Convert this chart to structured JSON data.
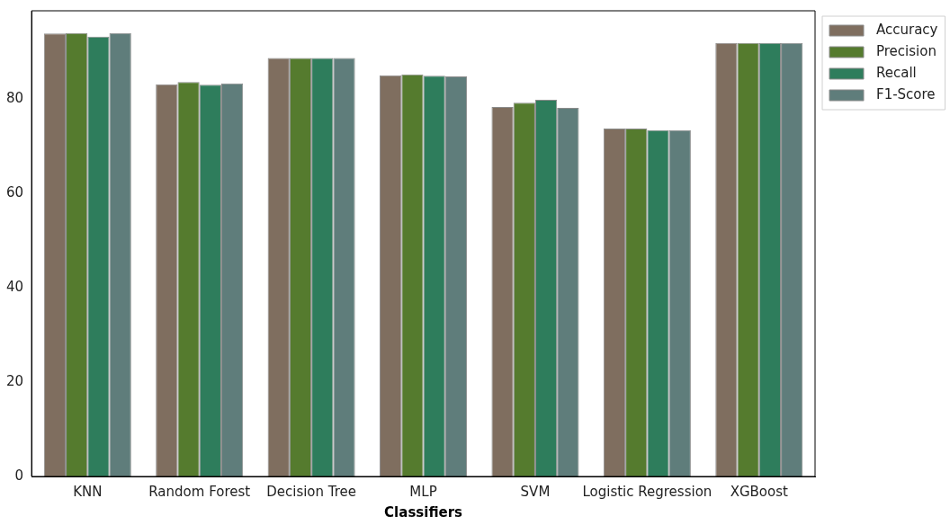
{
  "chart_data": {
    "type": "bar",
    "xlabel": "Classifiers",
    "categories": [
      "KNN",
      "Random Forest",
      "Decision Tree",
      "MLP",
      "SVM",
      "Logistic Regression",
      "XGBoost"
    ],
    "series": [
      {
        "name": "Accuracy",
        "color": "#7f6e5f",
        "values": [
          94.0,
          83.2,
          88.8,
          85.1,
          78.4,
          73.8,
          92.0
        ]
      },
      {
        "name": "Precision",
        "color": "#557b2e",
        "values": [
          94.1,
          83.7,
          88.8,
          85.3,
          79.3,
          73.8,
          92.0
        ]
      },
      {
        "name": "Recall",
        "color": "#2e7d5c",
        "values": [
          93.3,
          83.1,
          88.8,
          85.0,
          79.9,
          73.5,
          92.0
        ]
      },
      {
        "name": "F1-Score",
        "color": "#5f7d7b",
        "values": [
          94.1,
          83.4,
          88.8,
          84.9,
          78.2,
          73.5,
          92.0
        ]
      }
    ],
    "ylim": [
      0,
      98.8
    ],
    "yticks": [
      0,
      20,
      40,
      60,
      80
    ],
    "grid": false,
    "legend": "top right"
  }
}
